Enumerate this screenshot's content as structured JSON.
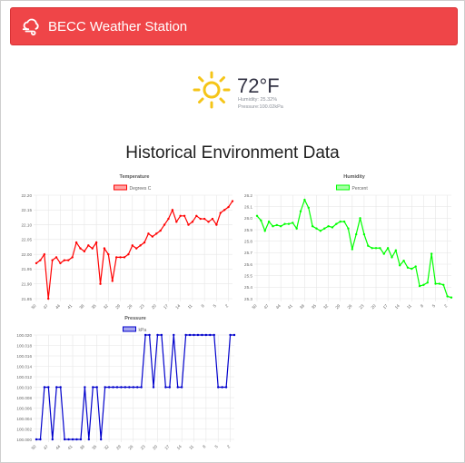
{
  "navbar": {
    "title": "BECC Weather Station"
  },
  "current": {
    "temperature": "72°F",
    "humidity": "Humidity: 25.32%",
    "pressure": "Pressure:100.02kPa"
  },
  "section_title": "Historical Environment Data",
  "colors": {
    "navbar": "#ef4548",
    "temperature": "#ff0000",
    "humidity": "#00ff00",
    "pressure": "#0000cc"
  },
  "chart_data": [
    {
      "type": "line",
      "title": "Temperature",
      "series": [
        {
          "name": "Degrees C"
        }
      ],
      "x_tick_labels": [
        "50",
        "47",
        "44",
        "41",
        "38",
        "35",
        "32",
        "29",
        "26",
        "23",
        "20",
        "17",
        "14",
        "11",
        "8",
        "5",
        "2"
      ],
      "x": [
        50,
        49,
        48,
        47,
        46,
        45,
        44,
        43,
        42,
        41,
        40,
        39,
        38,
        37,
        36,
        35,
        34,
        33,
        32,
        31,
        30,
        29,
        28,
        27,
        26,
        25,
        24,
        23,
        22,
        21,
        20,
        19,
        18,
        17,
        16,
        15,
        14,
        13,
        12,
        11,
        10,
        9,
        8,
        7,
        6,
        5,
        4,
        3,
        2,
        1
      ],
      "y": [
        21.97,
        21.98,
        22.0,
        21.85,
        21.98,
        21.99,
        21.97,
        21.98,
        21.98,
        21.99,
        22.04,
        22.02,
        22.01,
        22.03,
        22.02,
        22.04,
        21.9,
        22.02,
        22.0,
        21.91,
        21.99,
        21.99,
        21.99,
        22.0,
        22.03,
        22.02,
        22.03,
        22.04,
        22.07,
        22.06,
        22.07,
        22.08,
        22.1,
        22.12,
        22.15,
        22.11,
        22.13,
        22.13,
        22.1,
        22.11,
        22.13,
        22.12,
        22.12,
        22.11,
        22.12,
        22.1,
        22.14,
        22.15,
        22.16,
        22.18
      ],
      "yticks": [
        "22.20",
        "22.15",
        "22.10",
        "22.05",
        "22.00",
        "21.95",
        "21.90",
        "21.85"
      ],
      "ylim": [
        21.85,
        22.2
      ]
    },
    {
      "type": "line",
      "title": "Humidity",
      "series": [
        {
          "name": "Percent"
        }
      ],
      "x_tick_labels": [
        "50",
        "47",
        "44",
        "41",
        "38",
        "35",
        "32",
        "29",
        "26",
        "23",
        "20",
        "17",
        "14",
        "11",
        "8",
        "5",
        "2"
      ],
      "x": [
        50,
        49,
        48,
        47,
        46,
        45,
        44,
        43,
        42,
        41,
        40,
        39,
        38,
        37,
        36,
        35,
        34,
        33,
        32,
        31,
        30,
        29,
        28,
        27,
        26,
        25,
        24,
        23,
        22,
        21,
        20,
        19,
        18,
        17,
        16,
        15,
        14,
        13,
        12,
        11,
        10,
        9,
        8,
        7,
        6,
        5,
        4,
        3,
        2,
        1
      ],
      "y": [
        26.02,
        25.98,
        25.89,
        25.97,
        25.93,
        25.94,
        25.93,
        25.95,
        25.95,
        25.96,
        25.91,
        26.06,
        26.16,
        26.09,
        25.93,
        25.91,
        25.89,
        25.91,
        25.93,
        25.92,
        25.95,
        25.97,
        25.97,
        25.91,
        25.73,
        25.86,
        26.0,
        25.86,
        25.76,
        25.74,
        25.74,
        25.74,
        25.69,
        25.74,
        25.66,
        25.72,
        25.59,
        25.63,
        25.57,
        25.56,
        25.58,
        25.41,
        25.42,
        25.44,
        25.69,
        25.43,
        25.43,
        25.42,
        25.32,
        25.31
      ],
      "yticks": [
        "26.2",
        "26.1",
        "26.0",
        "25.9",
        "25.8",
        "25.7",
        "25.6",
        "25.5",
        "25.4",
        "25.3"
      ],
      "ylim": [
        25.3,
        26.2
      ]
    },
    {
      "type": "line",
      "title": "Pressure",
      "series": [
        {
          "name": "kPa"
        }
      ],
      "x_tick_labels": [
        "50",
        "47",
        "44",
        "41",
        "38",
        "35",
        "32",
        "29",
        "26",
        "23",
        "20",
        "17",
        "14",
        "11",
        "8",
        "5",
        "2"
      ],
      "x": [
        50,
        49,
        48,
        47,
        46,
        45,
        44,
        43,
        42,
        41,
        40,
        39,
        38,
        37,
        36,
        35,
        34,
        33,
        32,
        31,
        30,
        29,
        28,
        27,
        26,
        25,
        24,
        23,
        22,
        21,
        20,
        19,
        18,
        17,
        16,
        15,
        14,
        13,
        12,
        11,
        10,
        9,
        8,
        7,
        6,
        5,
        4,
        3,
        2,
        1
      ],
      "y": [
        100.0,
        100.0,
        100.01,
        100.01,
        100.0,
        100.01,
        100.01,
        100.0,
        100.0,
        100.0,
        100.0,
        100.0,
        100.01,
        100.0,
        100.01,
        100.01,
        100.0,
        100.01,
        100.01,
        100.01,
        100.01,
        100.01,
        100.01,
        100.01,
        100.01,
        100.01,
        100.01,
        100.02,
        100.02,
        100.01,
        100.02,
        100.02,
        100.01,
        100.01,
        100.02,
        100.01,
        100.01,
        100.02,
        100.02,
        100.02,
        100.02,
        100.02,
        100.02,
        100.02,
        100.02,
        100.01,
        100.01,
        100.01,
        100.02,
        100.02
      ],
      "yticks": [
        "100.020",
        "100.018",
        "100.016",
        "100.014",
        "100.012",
        "100.010",
        "100.008",
        "100.006",
        "100.004",
        "100.002",
        "100.000"
      ],
      "ylim": [
        100.0,
        100.02
      ]
    }
  ]
}
